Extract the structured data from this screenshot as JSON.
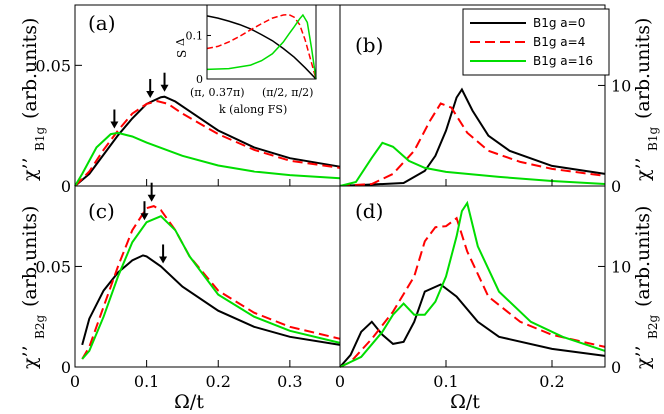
{
  "colors": {
    "a0": "#000000",
    "a4": "#ff0000",
    "a16": "#00dd00"
  },
  "legend": [
    {
      "key": "a0",
      "label": "B1g a=0",
      "dash": false
    },
    {
      "key": "a4",
      "label": "B1g a=4",
      "dash": true
    },
    {
      "key": "a16",
      "label": "B1g a=16",
      "dash": false
    }
  ],
  "axis_titles": {
    "x_left": "Ω/t",
    "x_right": "Ω/t",
    "chi": "χ’’",
    "units": "(arb.units)",
    "sub_b1g": "B1g",
    "sub_b2g": "B2g"
  },
  "inset": {
    "ylabel": "Δ",
    "ylabel_sub": "S",
    "xlabel": "k (along FS)",
    "xtick_left": "(π, 0.37π)",
    "xtick_right": "(π/2, π/2)"
  },
  "chart_data": [
    {
      "id": "a",
      "panel_label": "(a)",
      "type": "line",
      "xlim": [
        0,
        0.37
      ],
      "ylim": [
        0,
        0.075
      ],
      "yticks": [
        0,
        0.05
      ],
      "ytick_labels": [
        "0",
        "0.05"
      ],
      "xticks": [
        0,
        0.1,
        0.2,
        0.3
      ],
      "xtick_labels": [],
      "arrows": [
        0.055,
        0.105,
        0.125
      ],
      "series": [
        {
          "key": "a0",
          "x": [
            0,
            0.02,
            0.04,
            0.06,
            0.08,
            0.1,
            0.12,
            0.125,
            0.14,
            0.16,
            0.2,
            0.25,
            0.3,
            0.37
          ],
          "y": [
            0,
            0.005,
            0.013,
            0.021,
            0.028,
            0.034,
            0.0368,
            0.037,
            0.035,
            0.031,
            0.023,
            0.016,
            0.0115,
            0.008
          ]
        },
        {
          "key": "a4",
          "x": [
            0,
            0.02,
            0.04,
            0.06,
            0.08,
            0.1,
            0.115,
            0.13,
            0.15,
            0.2,
            0.25,
            0.3,
            0.37
          ],
          "y": [
            0,
            0.006,
            0.015,
            0.023,
            0.03,
            0.034,
            0.0352,
            0.034,
            0.03,
            0.0215,
            0.015,
            0.0105,
            0.0075
          ]
        },
        {
          "key": "a16",
          "x": [
            0,
            0.01,
            0.03,
            0.05,
            0.06,
            0.08,
            0.1,
            0.15,
            0.2,
            0.25,
            0.3,
            0.37
          ],
          "y": [
            0,
            0.005,
            0.016,
            0.0215,
            0.022,
            0.0205,
            0.018,
            0.0125,
            0.0085,
            0.006,
            0.0045,
            0.0032
          ]
        }
      ]
    },
    {
      "id": "b",
      "panel_label": "(b)",
      "type": "line",
      "xlim": [
        0,
        0.25
      ],
      "ylim": [
        0,
        18
      ],
      "yticks": [
        0,
        10
      ],
      "ytick_labels": [
        "0",
        "10"
      ],
      "xticks": [
        0,
        0.1,
        0.2
      ],
      "xtick_labels": [],
      "arrows": [],
      "series": [
        {
          "key": "a0",
          "x": [
            0,
            0.06,
            0.08,
            0.09,
            0.1,
            0.11,
            0.115,
            0.125,
            0.14,
            0.16,
            0.2,
            0.25
          ],
          "y": [
            0,
            0.3,
            1.5,
            3,
            5.5,
            8.8,
            9.6,
            7.5,
            5,
            3.5,
            2,
            1.2
          ]
        },
        {
          "key": "a4",
          "x": [
            0,
            0.03,
            0.05,
            0.07,
            0.085,
            0.095,
            0.105,
            0.12,
            0.14,
            0.17,
            0.2,
            0.25
          ],
          "y": [
            0,
            0.2,
            1.2,
            3.5,
            6.5,
            8.2,
            7.8,
            5.3,
            3.5,
            2.4,
            1.7,
            1
          ]
        },
        {
          "key": "a16",
          "x": [
            0,
            0.015,
            0.03,
            0.04,
            0.05,
            0.065,
            0.08,
            0.1,
            0.15,
            0.2,
            0.25
          ],
          "y": [
            0,
            0.4,
            2.8,
            4.3,
            3.9,
            2.5,
            1.8,
            1.4,
            0.9,
            0.5,
            0.2
          ]
        }
      ]
    },
    {
      "id": "c",
      "panel_label": "(c)",
      "type": "line",
      "xlim": [
        0,
        0.37
      ],
      "ylim": [
        0,
        0.09
      ],
      "yticks": [
        0,
        0.05
      ],
      "ytick_labels": [
        "0",
        "0.05"
      ],
      "xticks": [
        0,
        0.1,
        0.2,
        0.3
      ],
      "xtick_labels": [
        "0",
        "0.1",
        "0.2",
        "0.3"
      ],
      "arrows": [
        0.097,
        0.107,
        0.123
      ],
      "series": [
        {
          "key": "a0",
          "x": [
            0.01,
            0.02,
            0.04,
            0.06,
            0.08,
            0.095,
            0.1,
            0.12,
            0.15,
            0.2,
            0.25,
            0.3,
            0.37
          ],
          "y": [
            0.011,
            0.024,
            0.038,
            0.047,
            0.053,
            0.0555,
            0.055,
            0.05,
            0.04,
            0.028,
            0.02,
            0.015,
            0.011
          ]
        },
        {
          "key": "a4",
          "x": [
            0.01,
            0.02,
            0.04,
            0.06,
            0.08,
            0.1,
            0.11,
            0.12,
            0.14,
            0.16,
            0.2,
            0.25,
            0.3,
            0.37
          ],
          "y": [
            0.004,
            0.01,
            0.03,
            0.05,
            0.068,
            0.079,
            0.08,
            0.078,
            0.068,
            0.055,
            0.038,
            0.027,
            0.02,
            0.014
          ]
        },
        {
          "key": "a16",
          "x": [
            0.01,
            0.02,
            0.04,
            0.06,
            0.08,
            0.1,
            0.12,
            0.14,
            0.16,
            0.2,
            0.25,
            0.3,
            0.37
          ],
          "y": [
            0.004,
            0.008,
            0.025,
            0.045,
            0.062,
            0.072,
            0.075,
            0.068,
            0.055,
            0.036,
            0.025,
            0.018,
            0.012
          ]
        }
      ]
    },
    {
      "id": "d",
      "panel_label": "(d)",
      "type": "line",
      "xlim": [
        0,
        0.25
      ],
      "ylim": [
        0,
        18
      ],
      "yticks": [
        0,
        10
      ],
      "ytick_labels": [
        "0",
        "10"
      ],
      "xticks": [
        0,
        0.1,
        0.2
      ],
      "xtick_labels": [
        "0",
        "0.1",
        "0.2"
      ],
      "arrows": [],
      "series": [
        {
          "key": "a0",
          "x": [
            0,
            0.01,
            0.02,
            0.03,
            0.04,
            0.05,
            0.06,
            0.07,
            0.08,
            0.095,
            0.11,
            0.13,
            0.15,
            0.2,
            0.25
          ],
          "y": [
            0,
            1.2,
            3.5,
            4.5,
            3.2,
            2.3,
            2.5,
            4.5,
            7.5,
            8.2,
            7,
            4.5,
            3,
            1.8,
            1.1
          ]
        },
        {
          "key": "a4",
          "x": [
            0,
            0.01,
            0.03,
            0.05,
            0.07,
            0.08,
            0.09,
            0.1,
            0.11,
            0.12,
            0.14,
            0.17,
            0.2,
            0.25
          ],
          "y": [
            0,
            0.5,
            2.8,
            5.5,
            9,
            12.5,
            13.9,
            14,
            14.8,
            11.5,
            7,
            4.5,
            3.2,
            2
          ]
        },
        {
          "key": "a16",
          "x": [
            0,
            0.02,
            0.04,
            0.05,
            0.06,
            0.07,
            0.08,
            0.09,
            0.1,
            0.11,
            0.115,
            0.12,
            0.13,
            0.15,
            0.18,
            0.21,
            0.25
          ],
          "y": [
            0,
            1,
            3.5,
            5.2,
            6.3,
            5.2,
            5.2,
            6.5,
            9,
            13,
            15.5,
            16.3,
            12,
            7.5,
            4.5,
            3,
            1.6
          ]
        }
      ]
    },
    {
      "id": "inset",
      "type": "line",
      "xlim": [
        0,
        1
      ],
      "ylim": [
        0,
        0.17
      ],
      "yticks": [
        0,
        0.1
      ],
      "ytick_labels": [
        "0",
        "0.1"
      ],
      "series": [
        {
          "key": "a0",
          "x": [
            0,
            0.1,
            0.2,
            0.3,
            0.4,
            0.5,
            0.6,
            0.7,
            0.8,
            0.9,
            1
          ],
          "y": [
            0.145,
            0.14,
            0.133,
            0.125,
            0.115,
            0.102,
            0.088,
            0.07,
            0.05,
            0.026,
            0
          ]
        },
        {
          "key": "a4",
          "x": [
            0,
            0.1,
            0.2,
            0.3,
            0.4,
            0.5,
            0.6,
            0.7,
            0.75,
            0.8,
            0.85,
            0.9,
            1
          ],
          "y": [
            0.07,
            0.075,
            0.085,
            0.098,
            0.113,
            0.127,
            0.14,
            0.147,
            0.148,
            0.142,
            0.125,
            0.09,
            0
          ]
        },
        {
          "key": "a16",
          "x": [
            0,
            0.2,
            0.4,
            0.5,
            0.6,
            0.7,
            0.75,
            0.8,
            0.85,
            0.88,
            0.92,
            0.96,
            1
          ],
          "y": [
            0.022,
            0.024,
            0.032,
            0.042,
            0.058,
            0.085,
            0.103,
            0.12,
            0.138,
            0.147,
            0.13,
            0.07,
            0
          ]
        }
      ]
    }
  ]
}
